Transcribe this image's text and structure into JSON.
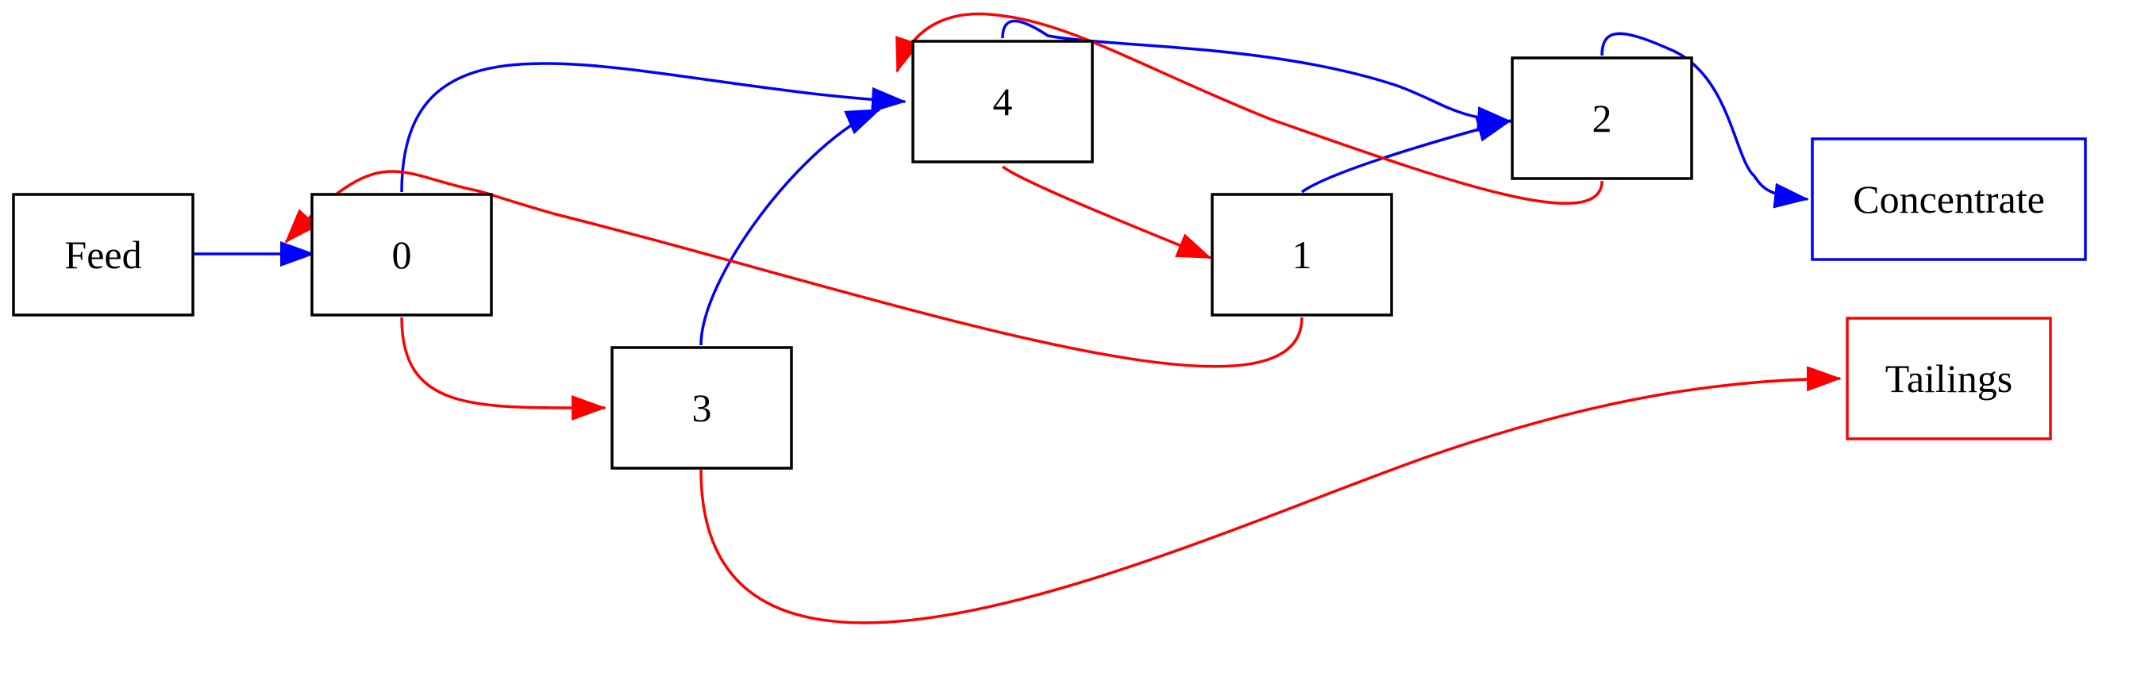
{
  "diagram": {
    "colors": {
      "node_default": "#000000",
      "concentrate": "#0000ff",
      "tailings": "#ff0000",
      "blue_stream": "#0000ff",
      "red_stream": "#ff0000",
      "background": "#ffffff"
    },
    "nodes": {
      "feed": {
        "label": "Feed"
      },
      "n0": {
        "label": "0"
      },
      "n1": {
        "label": "1"
      },
      "n2": {
        "label": "2"
      },
      "n3": {
        "label": "3"
      },
      "n4": {
        "label": "4"
      },
      "concentrate": {
        "label": "Concentrate"
      },
      "tailings": {
        "label": "Tailings"
      }
    },
    "edges": [
      {
        "from": "Feed",
        "to": "0",
        "stream": "blue"
      },
      {
        "from": "0",
        "to": "4",
        "stream": "blue"
      },
      {
        "from": "0",
        "to": "3",
        "stream": "red"
      },
      {
        "from": "3",
        "to": "4",
        "stream": "blue"
      },
      {
        "from": "3",
        "to": "Tailings",
        "stream": "red"
      },
      {
        "from": "4",
        "to": "2",
        "stream": "blue"
      },
      {
        "from": "4",
        "to": "1",
        "stream": "red"
      },
      {
        "from": "1",
        "to": "2",
        "stream": "blue"
      },
      {
        "from": "1",
        "to": "0",
        "stream": "red"
      },
      {
        "from": "2",
        "to": "Concentrate",
        "stream": "blue"
      },
      {
        "from": "2",
        "to": "4",
        "stream": "red"
      }
    ]
  }
}
